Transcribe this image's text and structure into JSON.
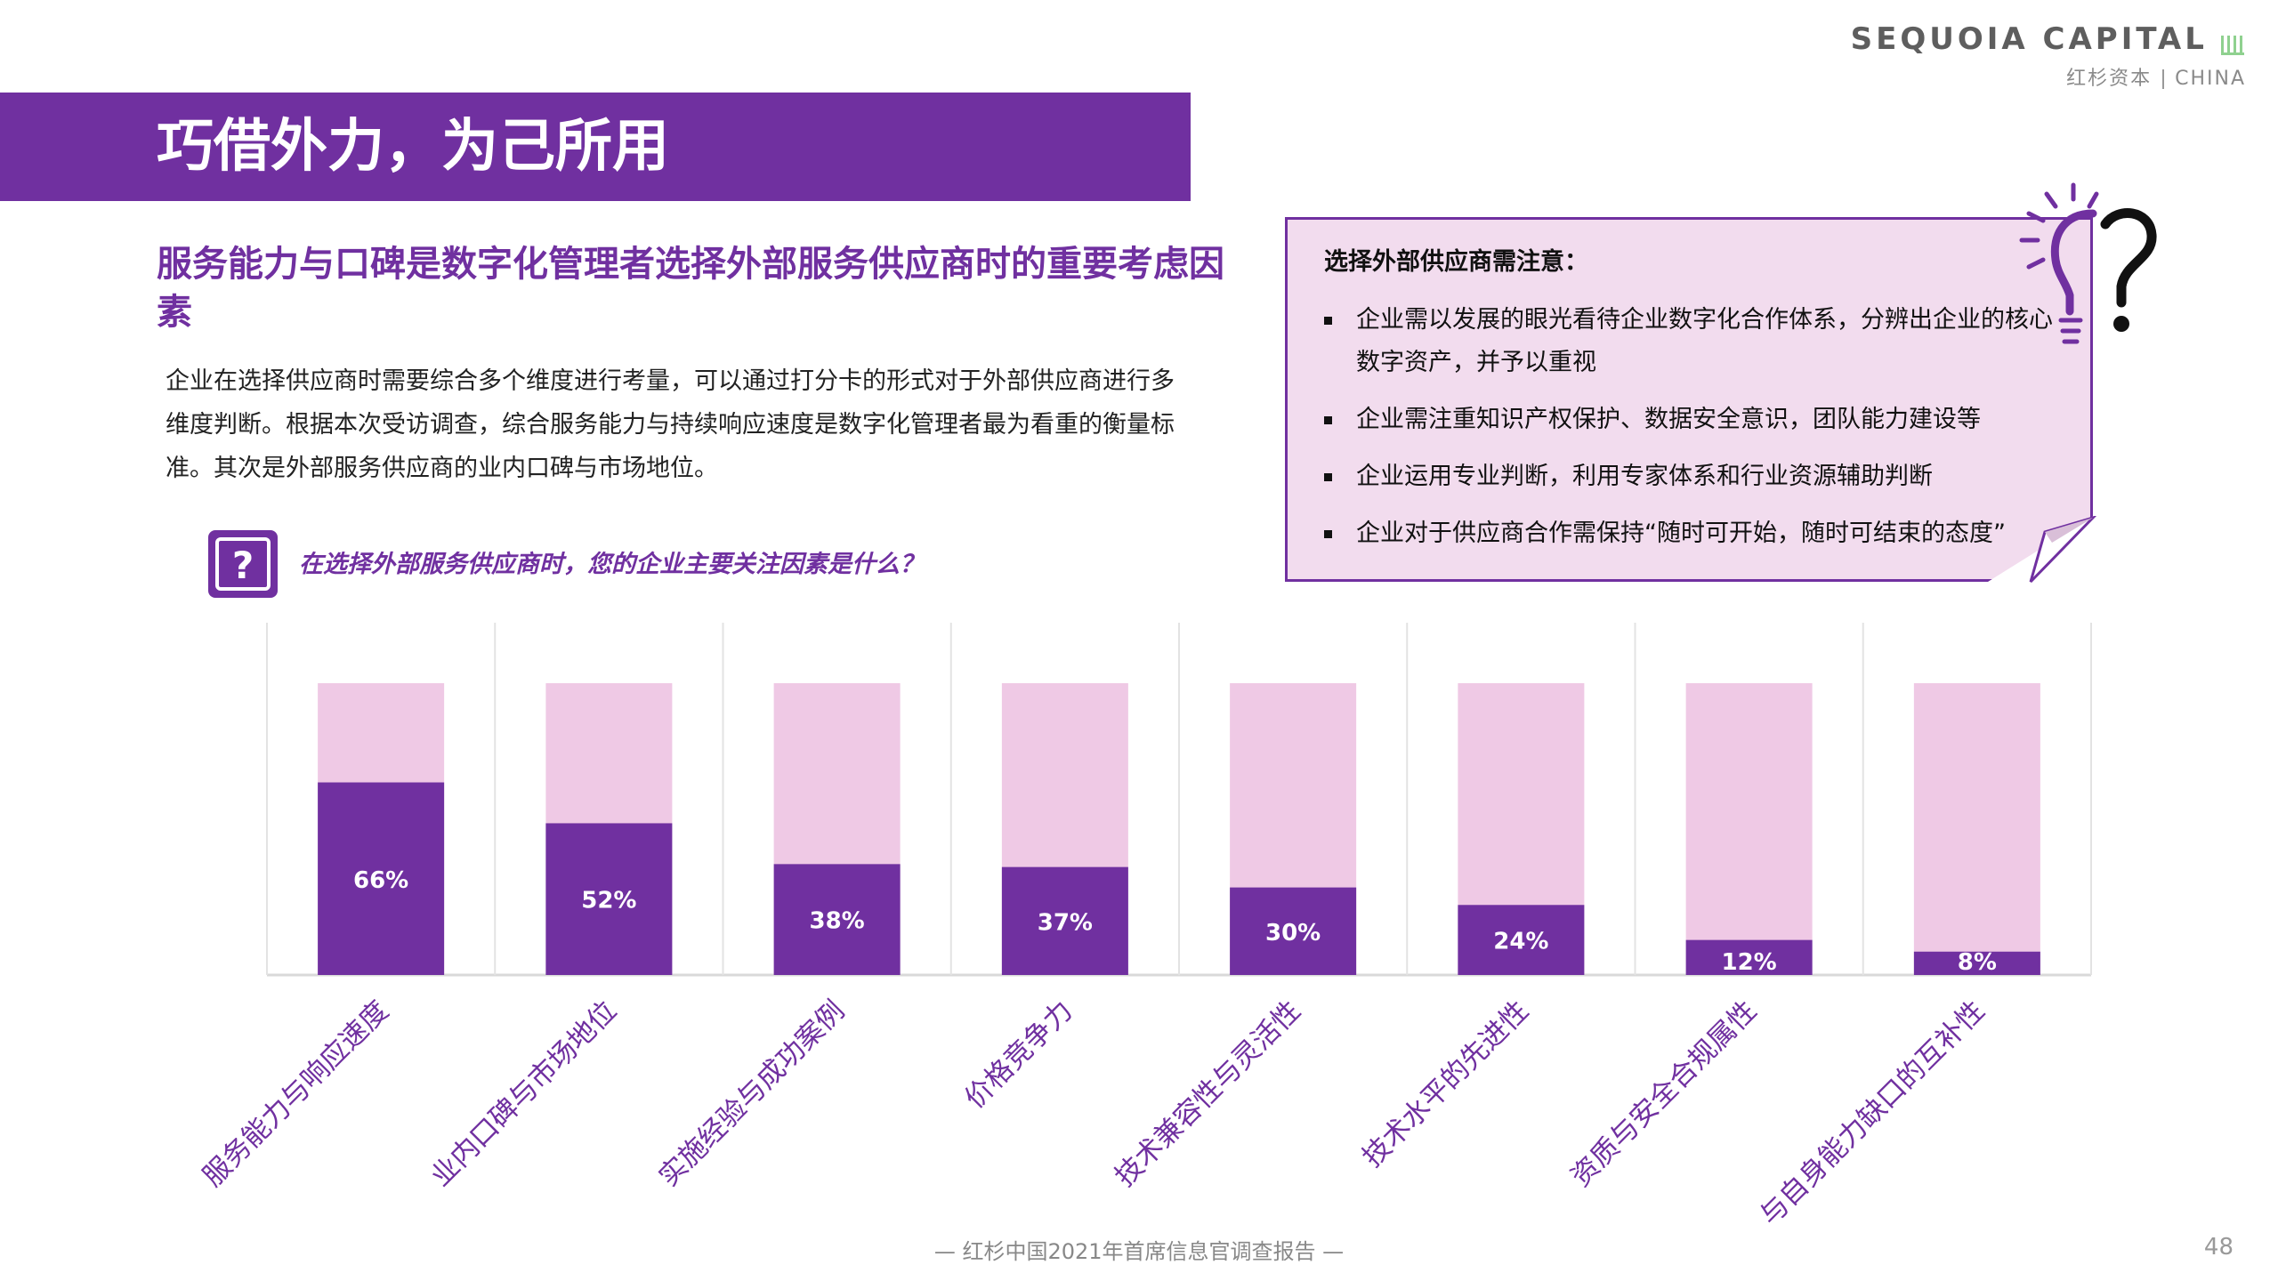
{
  "logo": {
    "name": "SEQUOIA CAPITAL",
    "sub_cn": "红杉资本",
    "sub_en": "CHINA",
    "color": "#5e5e5e"
  },
  "header": {
    "title": "巧借外力，为己所用"
  },
  "subtitle": "服务能力与口碑是数字化管理者选择外部服务供应商时的重要考虑因素",
  "body": "企业在选择供应商时需要综合多个维度进行考量，可以通过打分卡的形式对于外部供应商进行多维度判断。根据本次受访调查，综合服务能力与持续响应速度是数字化管理者最为看重的衡量标准。其次是外部服务供应商的业内口碑与市场地位。",
  "question": {
    "icon": "question-mark-icon",
    "text": "在选择外部服务供应商时，您的企业主要关注因素是什么？"
  },
  "note": {
    "title": "选择外部供应商需注意：",
    "items": [
      {
        "label": "企业需以发展的眼光看待企业数字化合作体系，分辨出企业的核心数字资产，并予以重视"
      },
      {
        "label": "企业需注重知识产权保护、数据安全意识，团队能力建设等"
      },
      {
        "label": "企业运用专业判断，利用专家体系和行业资源辅助判断"
      },
      {
        "label": "企业对于供应商合作需保持“随时可开始，随时可结束的态度”"
      }
    ]
  },
  "colors": {
    "accent": "#7030a0",
    "bar_bg": "#efc9e5",
    "note_bg": "#f2dcee"
  },
  "chart_data": {
    "type": "bar",
    "title": "在选择外部服务供应商时，您的企业主要关注因素是什么？",
    "categories": [
      "服务能力与响应速度",
      "业内口碑与市场地位",
      "实施经验与成功案例",
      "价格竞争力",
      "技术兼容性与灵活性",
      "技术水平的先进性",
      "资质与安全合规属性",
      "与自身能力缺口的互补性"
    ],
    "values": [
      66,
      52,
      38,
      37,
      30,
      24,
      12,
      8
    ],
    "value_labels": [
      "66%",
      "52%",
      "38%",
      "37%",
      "30%",
      "24%",
      "12%",
      "8%"
    ],
    "unit": "%",
    "ylim": [
      0,
      100
    ],
    "xlabel": "",
    "ylabel": "",
    "grid": false
  },
  "footer": {
    "text": "— 红杉中国2021年首席信息官调查报告 —",
    "page": "48"
  }
}
